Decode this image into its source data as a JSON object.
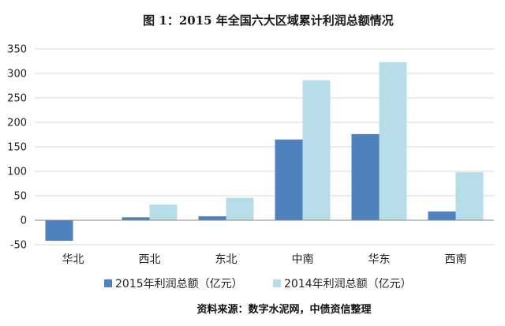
{
  "chart_data": {
    "type": "bar",
    "title": "图 1：2015 年全国六大区域累计利润总额情况",
    "categories": [
      "华北",
      "西北",
      "东北",
      "中南",
      "华东",
      "西南"
    ],
    "series": [
      {
        "name": "2015年利润总额（亿元）",
        "color": "#4f81bd",
        "values": [
          -42,
          6,
          8,
          165,
          176,
          18
        ]
      },
      {
        "name": "2014年利润总额（亿元）",
        "color": "#b7dde8",
        "values": [
          0,
          32,
          46,
          286,
          323,
          98
        ]
      }
    ],
    "ylim": [
      -50,
      350
    ],
    "yticks": [
      -50,
      0,
      50,
      100,
      150,
      200,
      250,
      300,
      350
    ],
    "grid": true,
    "legend_position": "bottom",
    "xlabel": "",
    "ylabel": ""
  },
  "source": "资料来源：数字水泥网，中债资信整理"
}
